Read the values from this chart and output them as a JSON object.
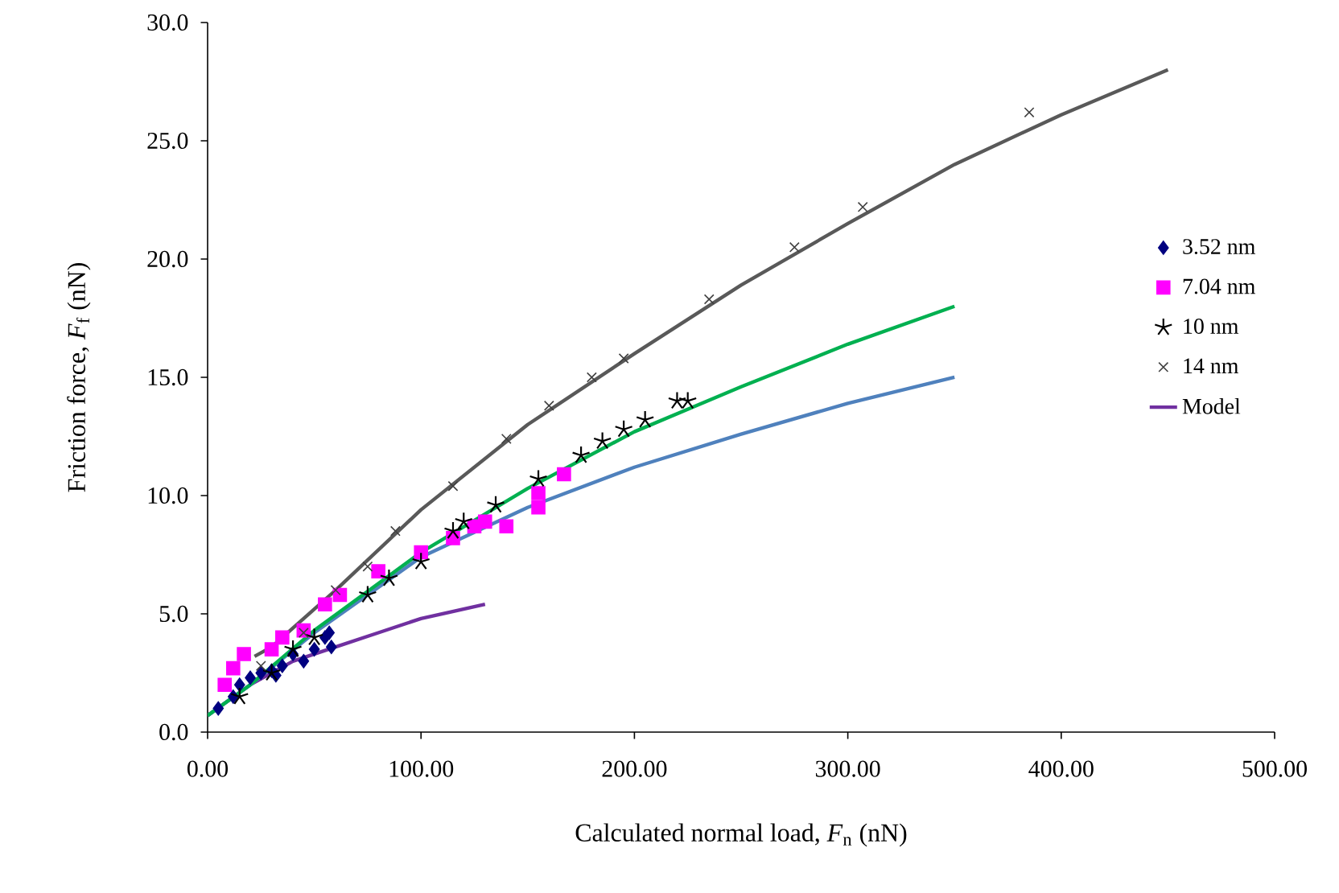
{
  "chart_data": {
    "type": "scatter",
    "xlabel": "Calculated normal load, *F*$_{n}$ (nN)",
    "ylabel": "Friction force, *F*$_{f}$ (nN)",
    "xlim": [
      0,
      500
    ],
    "ylim": [
      0,
      30
    ],
    "xticks": [
      {
        "value": 0,
        "label": "0.00"
      },
      {
        "value": 100,
        "label": "100.00"
      },
      {
        "value": 200,
        "label": "200.00"
      },
      {
        "value": 300,
        "label": "300.00"
      },
      {
        "value": 400,
        "label": "400.00"
      },
      {
        "value": 500,
        "label": "500.00"
      }
    ],
    "yticks": [
      {
        "value": 0,
        "label": "0.0"
      },
      {
        "value": 5,
        "label": "5.0"
      },
      {
        "value": 10,
        "label": "10.0"
      },
      {
        "value": 15,
        "label": "15.0"
      },
      {
        "value": 20,
        "label": "20.0"
      },
      {
        "value": 25,
        "label": "25.0"
      },
      {
        "value": 30,
        "label": "30.0"
      }
    ],
    "grid": false,
    "legend": "right",
    "series": [
      {
        "name": "3.52 nm",
        "marker": "diamond",
        "color": "#000080",
        "x": [
          5,
          12,
          15,
          20,
          25,
          30,
          32,
          35,
          40,
          45,
          50,
          55,
          57,
          58
        ],
        "values": [
          1.0,
          1.5,
          2.0,
          2.3,
          2.5,
          2.6,
          2.4,
          2.8,
          3.3,
          3.0,
          3.5,
          4.0,
          4.2,
          3.6
        ]
      },
      {
        "name": "7.04 nm",
        "marker": "square",
        "color": "#ff00ff",
        "x": [
          8,
          12,
          17,
          30,
          35,
          45,
          55,
          62,
          80,
          100,
          115,
          125,
          130,
          140,
          155,
          155,
          167
        ],
        "values": [
          2.0,
          2.7,
          3.3,
          3.5,
          4.0,
          4.3,
          5.4,
          5.8,
          6.8,
          7.6,
          8.2,
          8.7,
          8.9,
          8.7,
          9.5,
          10.1,
          10.9
        ]
      },
      {
        "name": "10 nm",
        "color": "#000000",
        "x": [
          15,
          30,
          40,
          50,
          75,
          85,
          100,
          115,
          120,
          135,
          155,
          175,
          185,
          195,
          205,
          220,
          225
        ],
        "values": [
          1.5,
          2.5,
          3.5,
          4.0,
          5.8,
          6.5,
          7.2,
          8.5,
          8.9,
          9.6,
          10.7,
          11.7,
          12.3,
          12.8,
          13.2,
          14.0,
          14.0
        ]
      },
      {
        "name": "14 nm",
        "marker": "cross",
        "color": "#404040",
        "x": [
          25,
          45,
          60,
          75,
          88,
          115,
          140,
          160,
          180,
          195,
          235,
          275,
          307,
          385
        ],
        "values": [
          2.8,
          4.2,
          6.0,
          7.0,
          8.5,
          10.4,
          12.4,
          13.8,
          15.0,
          15.8,
          18.3,
          20.5,
          22.2,
          26.2
        ]
      },
      {
        "name": "Model",
        "type": "line",
        "marker": "none",
        "color": "#7030a0",
        "x": [
          0,
          20,
          40,
          60,
          80,
          100,
          130
        ],
        "values": [
          0.7,
          2.0,
          3.0,
          3.6,
          4.2,
          4.8,
          5.4
        ]
      },
      {
        "type": "line",
        "marker": "none",
        "color": "#4f81bd",
        "x": [
          0,
          20,
          50,
          100,
          150,
          200,
          250,
          300,
          350
        ],
        "values": [
          0.7,
          2.0,
          4.2,
          7.4,
          9.5,
          11.2,
          12.6,
          13.9,
          15.0
        ]
      },
      {
        "type": "line",
        "marker": "none",
        "color": "#00b050",
        "x": [
          0,
          20,
          50,
          100,
          150,
          200,
          250,
          300,
          350
        ],
        "values": [
          0.7,
          2.0,
          4.3,
          7.6,
          10.3,
          12.7,
          14.6,
          16.4,
          18.0
        ]
      },
      {
        "type": "line",
        "marker": "none",
        "color": "#595959",
        "x": [
          22,
          30,
          60,
          100,
          150,
          200,
          250,
          300,
          350,
          400,
          450
        ],
        "values": [
          3.2,
          3.6,
          6.0,
          9.4,
          13.0,
          16.0,
          18.9,
          21.5,
          24.0,
          26.1,
          28.0
        ]
      }
    ]
  }
}
